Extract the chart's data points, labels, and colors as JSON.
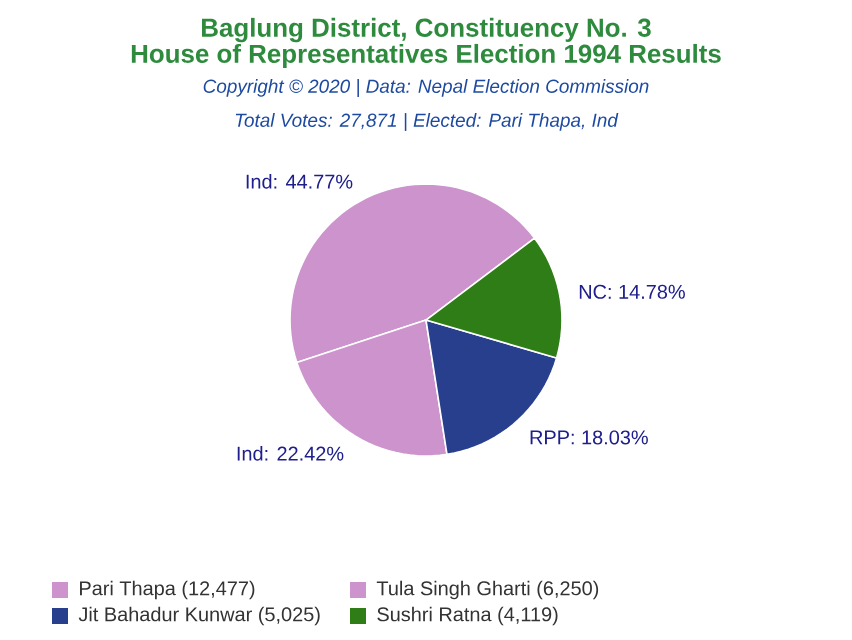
{
  "chart_data": {
    "type": "pie",
    "title": "Baglung District, Constituency No. 3",
    "subtitle": "House of Representatives Election 1994 Results",
    "annotations": [
      "Copyright © 2020 | Data: Nepal Election Commission",
      "Total Votes: 27,871 | Elected: Pari Thapa, Ind"
    ],
    "categories": [
      "Pari Thapa (12,477)",
      "Tula Singh Gharti (6,250)",
      "Jit Bahadur Kunwar (5,025)",
      "Sushri Ratna (4,119)"
    ],
    "values": [
      44.77,
      22.42,
      18.03,
      14.78
    ],
    "value_labels": [
      "Ind: 44.77%",
      "Ind: 22.42%",
      "RPP: 18.03%",
      "NC: 14.78%"
    ],
    "colors": [
      "#cc93cc",
      "#cc93cc",
      "#273f8c",
      "#2e7d16"
    ],
    "legend": "bottom"
  }
}
